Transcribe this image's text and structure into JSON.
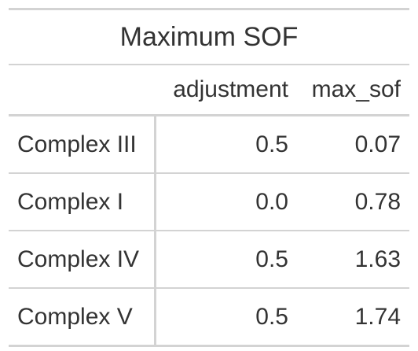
{
  "table": {
    "title": "Maximum SOF",
    "columns": [
      "",
      "adjustment",
      "max_sof"
    ],
    "rows": [
      {
        "label": "Complex III",
        "adjustment": "0.5",
        "max_sof": "0.07"
      },
      {
        "label": "Complex I",
        "adjustment": "0.0",
        "max_sof": "0.78"
      },
      {
        "label": "Complex IV",
        "adjustment": "0.5",
        "max_sof": "1.63"
      },
      {
        "label": "Complex V",
        "adjustment": "0.5",
        "max_sof": "1.74"
      }
    ]
  }
}
